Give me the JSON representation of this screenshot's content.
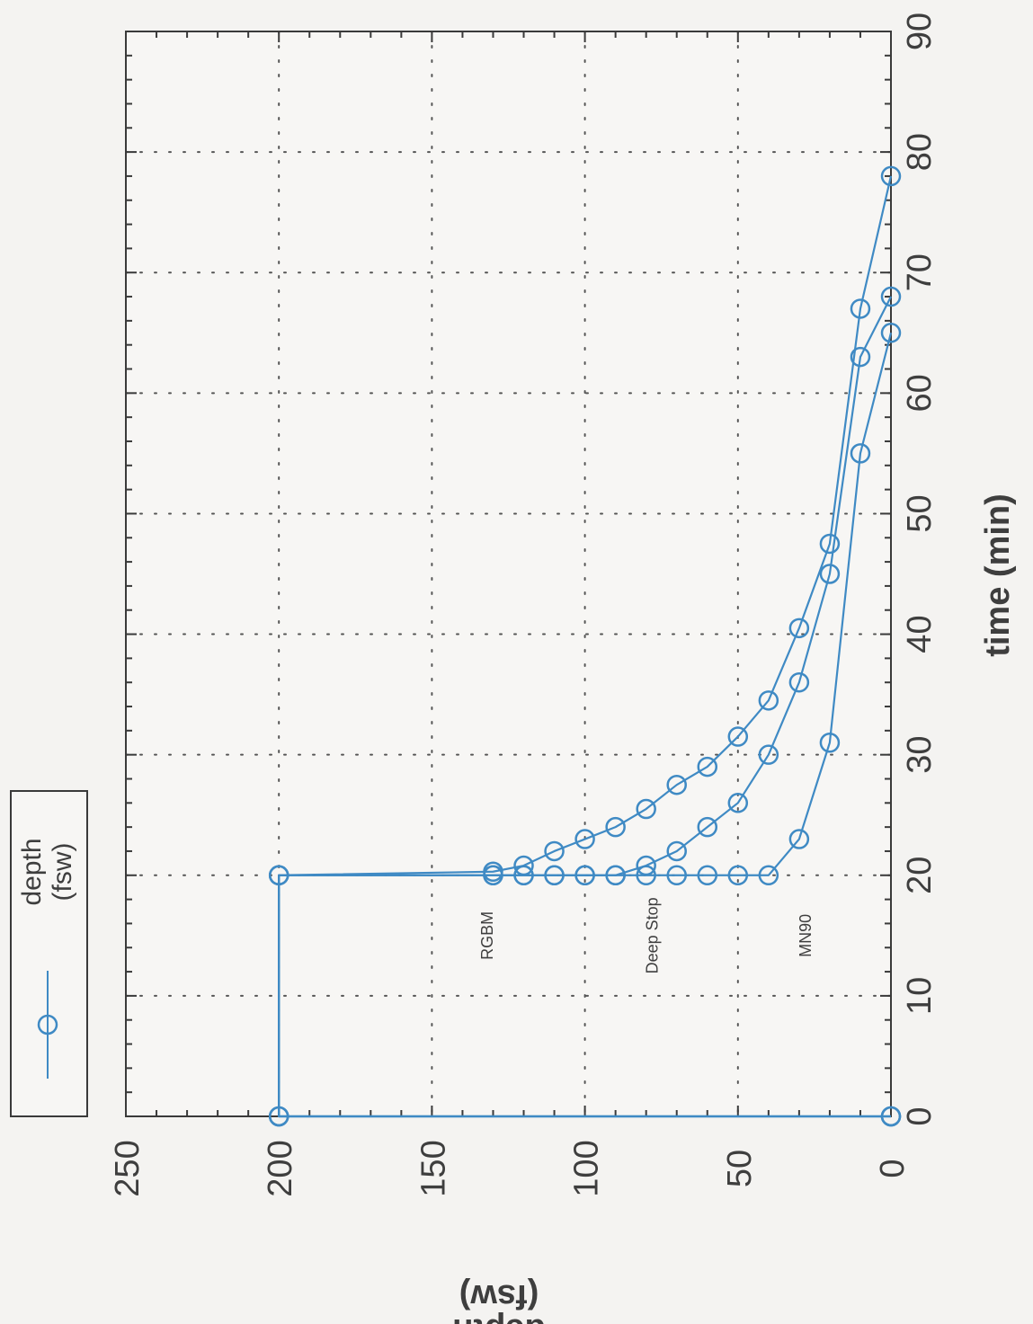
{
  "chart_data": {
    "type": "line",
    "orientation": "rotated-90-clockwise",
    "xlabel": "time (min)",
    "ylabel_line1": "depth",
    "ylabel_line2": "(fsw)",
    "xlim": [
      0,
      90
    ],
    "ylim": [
      0,
      250
    ],
    "xticks": [
      0,
      10,
      20,
      30,
      40,
      50,
      60,
      70,
      80,
      90
    ],
    "yticks": [
      0,
      50,
      100,
      150,
      200,
      250
    ],
    "grid": true,
    "legend": {
      "position": "top-left",
      "line1": "depth",
      "line2": "(fsw)"
    },
    "line_color": "#3f8ac4",
    "series": [
      {
        "x": [
          0,
          0,
          20,
          20,
          20,
          20,
          20,
          20,
          20,
          20,
          20,
          20,
          20,
          23,
          31,
          55,
          65
        ],
        "y": [
          0,
          200,
          200,
          130,
          120,
          110,
          100,
          90,
          80,
          70,
          60,
          50,
          40,
          30,
          20,
          10,
          0
        ]
      },
      {
        "x": [
          0,
          0,
          20,
          20,
          20,
          20,
          20,
          20,
          20.8,
          22,
          24,
          26,
          30,
          36,
          45,
          63,
          68
        ],
        "y": [
          0,
          200,
          200,
          130,
          120,
          110,
          100,
          90,
          80,
          70,
          60,
          50,
          40,
          30,
          20,
          10,
          0
        ]
      },
      {
        "x": [
          0,
          0,
          20,
          20.3,
          20.8,
          22,
          23,
          24,
          25.5,
          27.5,
          29,
          31.5,
          34.5,
          40.5,
          47.5,
          67,
          78
        ],
        "y": [
          0,
          200,
          200,
          130,
          120,
          110,
          100,
          90,
          80,
          70,
          60,
          50,
          40,
          30,
          20,
          10,
          0
        ]
      }
    ],
    "annotations": [
      {
        "text": "RGBM",
        "x": 15,
        "y": 129
      },
      {
        "text": "Deep Stop",
        "x": 15,
        "y": 75
      },
      {
        "text": "MN90",
        "x": 15,
        "y": 25
      }
    ]
  }
}
